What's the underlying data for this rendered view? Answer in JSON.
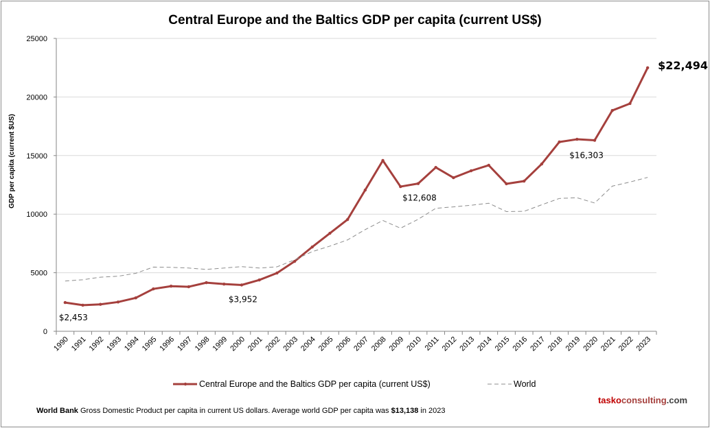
{
  "chart_data": {
    "type": "line",
    "title": "Central Europe and the Baltics GDP per capita (current US$)",
    "ylabel": "GDP per capita (current $US)",
    "xlabel": "",
    "ylim": [
      0,
      25000
    ],
    "yticks": [
      0,
      5000,
      10000,
      15000,
      20000,
      25000
    ],
    "grid": true,
    "legend_position": "bottom",
    "x": [
      "1990",
      "1991",
      "1992",
      "1993",
      "1994",
      "1995",
      "1996",
      "1997",
      "1998",
      "1999",
      "2000",
      "2001",
      "2002",
      "2003",
      "2004",
      "2005",
      "2006",
      "2007",
      "2008",
      "2009",
      "2010",
      "2011",
      "2012",
      "2013",
      "2014",
      "2015",
      "2016",
      "2017",
      "2018",
      "2019",
      "2020",
      "2021",
      "2022",
      "2023"
    ],
    "series": [
      {
        "name": "Central Europe and the Baltics GDP per capita (current US$)",
        "color": "#a5403d",
        "values": [
          2453,
          2230,
          2300,
          2500,
          2850,
          3620,
          3850,
          3800,
          4150,
          4030,
          3952,
          4380,
          4970,
          5970,
          7200,
          8370,
          9540,
          12060,
          14580,
          12350,
          12608,
          13990,
          13110,
          13700,
          14170,
          12590,
          12820,
          14280,
          16160,
          16390,
          16303,
          18850,
          19440,
          22494
        ]
      },
      {
        "name": "World",
        "color": "#8c8c8c",
        "values": [
          4290,
          4400,
          4620,
          4700,
          4950,
          5480,
          5460,
          5400,
          5280,
          5400,
          5520,
          5400,
          5500,
          6100,
          6800,
          7270,
          7800,
          8680,
          9460,
          8800,
          9560,
          10500,
          10620,
          10760,
          10930,
          10220,
          10240,
          10800,
          11340,
          11400,
          10950,
          12390,
          12740,
          13138
        ]
      }
    ],
    "annotations": [
      {
        "year": "1990",
        "text": "$2,453"
      },
      {
        "year": "2000",
        "text": "$3,952"
      },
      {
        "year": "2010",
        "text": "$12,608"
      },
      {
        "year": "2020",
        "text": "$16,303"
      },
      {
        "year": "2023",
        "text": "$22,494"
      }
    ]
  },
  "footer": {
    "source_bold": "World Bank",
    "source_text": " Gross Domestic Product per capita in current US dollars.  Average world GDP per capita was ",
    "world_value": "$13,138",
    "suffix": " in 2023"
  },
  "brand": {
    "part1": "tasko",
    "part2": "consulting",
    "part3": ".com",
    "color1": "#c00000",
    "color2": "#a5403d",
    "color3": "#404040"
  }
}
